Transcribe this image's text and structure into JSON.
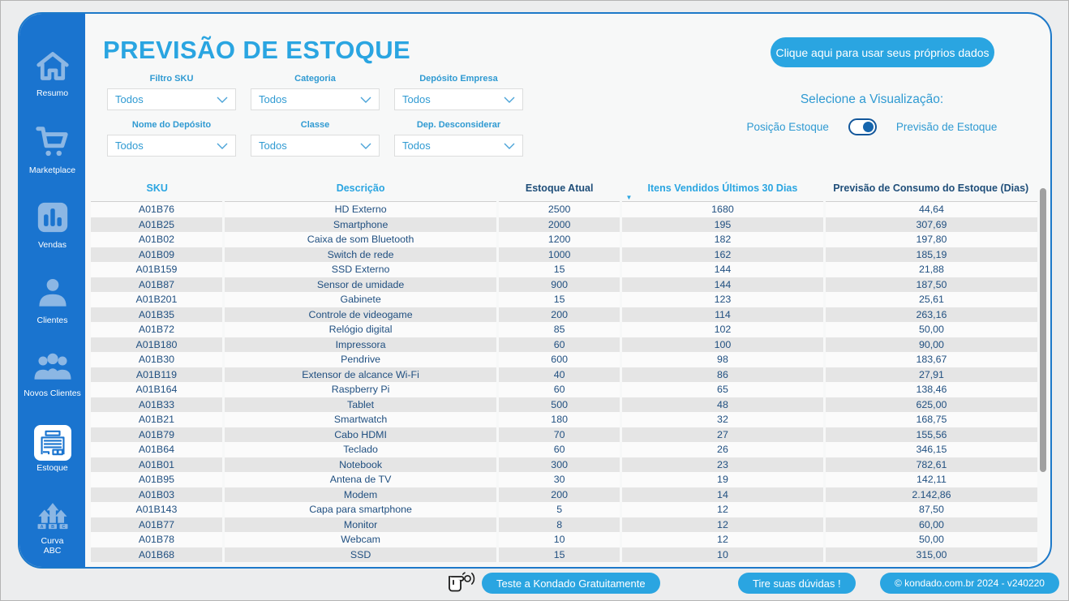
{
  "header": {
    "title": "PREVISÃO DE ESTOQUE",
    "cta_button": "Clique aqui para usar seus próprios dados"
  },
  "sidebar": {
    "items": [
      {
        "label": "Resumo",
        "icon": "home-icon"
      },
      {
        "label": "Marketplace",
        "icon": "cart-icon"
      },
      {
        "label": "Vendas",
        "icon": "bar-chart-icon"
      },
      {
        "label": "Clientes",
        "icon": "person-icon"
      },
      {
        "label": "Novos Clientes",
        "icon": "people-icon"
      },
      {
        "label": "Estoque",
        "icon": "warehouse-icon",
        "active": true
      },
      {
        "label": "Curva ABC",
        "icon": "abc-arrows-icon"
      }
    ]
  },
  "filters": {
    "items": [
      {
        "label": "Filtro SKU",
        "value": "Todos"
      },
      {
        "label": "Categoria",
        "value": "Todos"
      },
      {
        "label": "Depósito Empresa",
        "value": "Todos"
      },
      {
        "label": "Nome do Depósito",
        "value": "Todos"
      },
      {
        "label": "Classe",
        "value": "Todos"
      },
      {
        "label": "Dep. Desconsiderar",
        "value": "Todos"
      }
    ]
  },
  "visualization": {
    "title": "Selecione a Visualização:",
    "left_label": "Posição Estoque",
    "right_label": "Previsão de Estoque",
    "selected": "Previsão de Estoque"
  },
  "table": {
    "sort_icon": "▼",
    "sorted_by": "Itens Vendidos Últimos 30 Dias",
    "sort_direction": "desc",
    "columns": [
      {
        "label": "SKU"
      },
      {
        "label": "Descrição"
      },
      {
        "label": "Estoque Atual"
      },
      {
        "label": "Itens Vendidos Últimos 30 Dias"
      },
      {
        "label": "Previsão de Consumo do Estoque (Dias)"
      }
    ],
    "rows": [
      {
        "sku": "A01B76",
        "descricao": "HD Externo",
        "estoque_atual": "2500",
        "itens_vendidos": "1680",
        "previsao_dias": "44,64"
      },
      {
        "sku": "A01B25",
        "descricao": "Smartphone",
        "estoque_atual": "2000",
        "itens_vendidos": "195",
        "previsao_dias": "307,69"
      },
      {
        "sku": "A01B02",
        "descricao": "Caixa de som Bluetooth",
        "estoque_atual": "1200",
        "itens_vendidos": "182",
        "previsao_dias": "197,80"
      },
      {
        "sku": "A01B09",
        "descricao": "Switch de rede",
        "estoque_atual": "1000",
        "itens_vendidos": "162",
        "previsao_dias": "185,19"
      },
      {
        "sku": "A01B159",
        "descricao": "SSD Externo",
        "estoque_atual": "15",
        "itens_vendidos": "144",
        "previsao_dias": "21,88"
      },
      {
        "sku": "A01B87",
        "descricao": "Sensor de umidade",
        "estoque_atual": "900",
        "itens_vendidos": "144",
        "previsao_dias": "187,50"
      },
      {
        "sku": "A01B201",
        "descricao": "Gabinete",
        "estoque_atual": "15",
        "itens_vendidos": "123",
        "previsao_dias": "25,61"
      },
      {
        "sku": "A01B35",
        "descricao": "Controle de videogame",
        "estoque_atual": "200",
        "itens_vendidos": "114",
        "previsao_dias": "263,16"
      },
      {
        "sku": "A01B72",
        "descricao": "Relógio digital",
        "estoque_atual": "85",
        "itens_vendidos": "102",
        "previsao_dias": "50,00"
      },
      {
        "sku": "A01B180",
        "descricao": "Impressora",
        "estoque_atual": "60",
        "itens_vendidos": "100",
        "previsao_dias": "90,00"
      },
      {
        "sku": "A01B30",
        "descricao": "Pendrive",
        "estoque_atual": "600",
        "itens_vendidos": "98",
        "previsao_dias": "183,67"
      },
      {
        "sku": "A01B119",
        "descricao": "Extensor de alcance Wi-Fi",
        "estoque_atual": "40",
        "itens_vendidos": "86",
        "previsao_dias": "27,91"
      },
      {
        "sku": "A01B164",
        "descricao": "Raspberry Pi",
        "estoque_atual": "60",
        "itens_vendidos": "65",
        "previsao_dias": "138,46"
      },
      {
        "sku": "A01B33",
        "descricao": "Tablet",
        "estoque_atual": "500",
        "itens_vendidos": "48",
        "previsao_dias": "625,00"
      },
      {
        "sku": "A01B21",
        "descricao": "Smartwatch",
        "estoque_atual": "180",
        "itens_vendidos": "32",
        "previsao_dias": "168,75"
      },
      {
        "sku": "A01B79",
        "descricao": "Cabo HDMI",
        "estoque_atual": "70",
        "itens_vendidos": "27",
        "previsao_dias": "155,56"
      },
      {
        "sku": "A01B64",
        "descricao": "Teclado",
        "estoque_atual": "60",
        "itens_vendidos": "26",
        "previsao_dias": "346,15"
      },
      {
        "sku": "A01B01",
        "descricao": "Notebook",
        "estoque_atual": "300",
        "itens_vendidos": "23",
        "previsao_dias": "782,61"
      },
      {
        "sku": "A01B95",
        "descricao": "Antena de TV",
        "estoque_atual": "30",
        "itens_vendidos": "19",
        "previsao_dias": "142,11"
      },
      {
        "sku": "A01B03",
        "descricao": "Modem",
        "estoque_atual": "200",
        "itens_vendidos": "14",
        "previsao_dias": "2.142,86"
      },
      {
        "sku": "A01B143",
        "descricao": "Capa para smartphone",
        "estoque_atual": "5",
        "itens_vendidos": "12",
        "previsao_dias": "87,50"
      },
      {
        "sku": "A01B77",
        "descricao": "Monitor",
        "estoque_atual": "8",
        "itens_vendidos": "12",
        "previsao_dias": "60,00"
      },
      {
        "sku": "A01B78",
        "descricao": "Webcam",
        "estoque_atual": "10",
        "itens_vendidos": "12",
        "previsao_dias": "50,00"
      },
      {
        "sku": "A01B68",
        "descricao": "SSD",
        "estoque_atual": "15",
        "itens_vendidos": "10",
        "previsao_dias": "315,00"
      }
    ]
  },
  "footer": {
    "test_button": "Teste a Kondado Gratuitamente",
    "doubts_button": "Tire suas dúvidas !",
    "copyright_button": "© kondado.com.br 2024 - v240220"
  },
  "colors": {
    "accent_light_blue": "#2aa5e1",
    "sidebar_blue": "#1a74cf",
    "sidebar_icon_blue": "#8cb7e4",
    "filter_text_blue": "#2f9ad2",
    "table_navy": "#1f4e79",
    "row_stripe_gray": "#e5e5e5",
    "card_border_blue": "#1d79c9"
  }
}
